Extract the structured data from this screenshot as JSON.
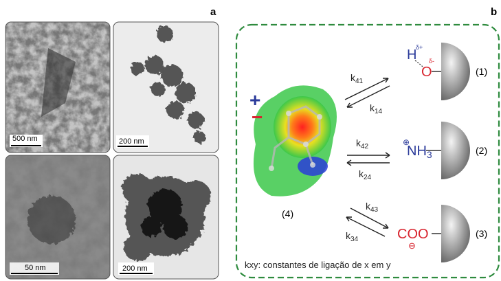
{
  "panel_labels": [
    "a",
    "b"
  ],
  "panel_a": {
    "scale_bars": [
      "500 nm",
      "200 nm",
      "50 nm",
      "200 nm"
    ]
  },
  "panel_b": {
    "charges": {
      "plus": "+",
      "minus": "−"
    },
    "center_label": "(4)",
    "rate_constants": [
      {
        "k": "k",
        "sub": "41"
      },
      {
        "k": "k",
        "sub": "14"
      },
      {
        "k": "k",
        "sub": "42"
      },
      {
        "k": "k",
        "sub": "24"
      },
      {
        "k": "k",
        "sub": "43"
      },
      {
        "k": "k",
        "sub": "34"
      }
    ],
    "groups": {
      "hydroxyl": {
        "h": "H",
        "h_charge": "δ+",
        "o": "O",
        "o_charge": "δ-"
      },
      "amine": {
        "charge": "⊕",
        "base": "NH",
        "sub": "3"
      },
      "carboxylate": {
        "base": "COO",
        "charge": "⊖"
      }
    },
    "labels": [
      "(1)",
      "(2)",
      "(3)"
    ],
    "legend": "kxy: constantes de ligação de x em y"
  }
}
